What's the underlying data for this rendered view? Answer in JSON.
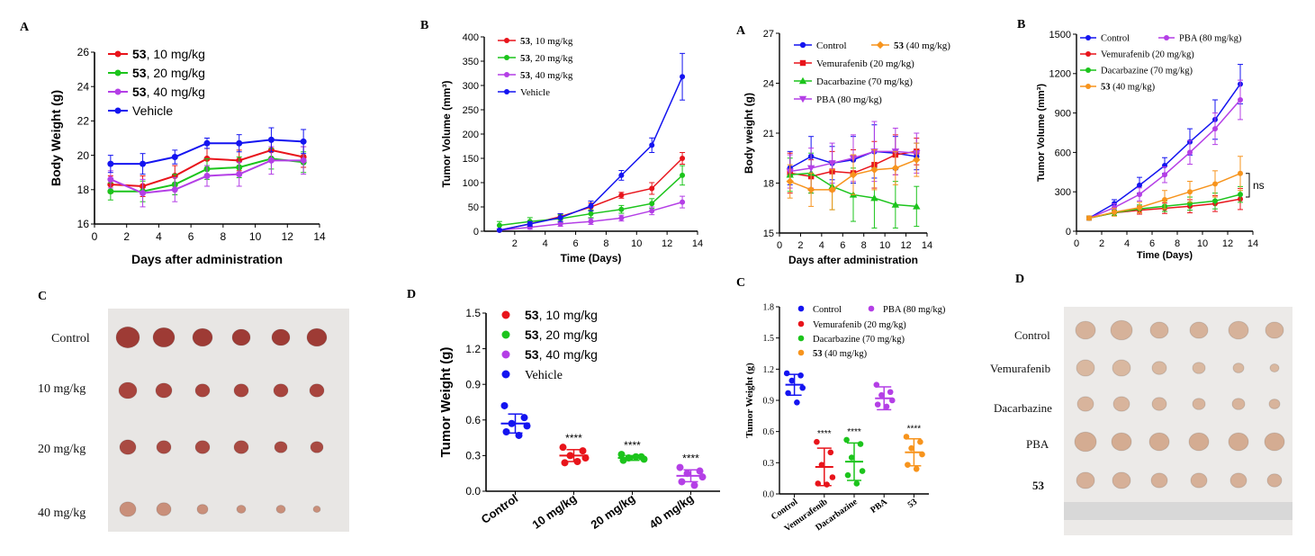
{
  "panel_letters": [
    "A",
    "B",
    "A",
    "B",
    "C",
    "D",
    "C",
    "D"
  ],
  "colors": {
    "red": "#e8141b",
    "green": "#1cc41c",
    "purple": "#b43fe6",
    "blue": "#1414f0",
    "orange": "#f7941d",
    "axis": "#000000",
    "photo_bg": "#e6e6e6",
    "tumor": "#9e3b35",
    "tumor_pale": "#d9b8a0"
  },
  "photo_left": {
    "rows": [
      "Control",
      "10 mg/kg",
      "20 mg/kg",
      "40 mg/kg"
    ]
  },
  "photo_right": {
    "rows": [
      "Control",
      "Vemurafenib",
      "Dacarbazine",
      "PBA",
      "53"
    ]
  },
  "chart_data": [
    {
      "type": "line",
      "panel": "A",
      "xlabel": "Days after administration",
      "ylabel": "Body Weight (g)",
      "xlim": [
        0,
        14
      ],
      "ylim": [
        16,
        26
      ],
      "xticks": [
        0,
        2,
        4,
        6,
        8,
        10,
        12,
        14
      ],
      "yticks": [
        16,
        18,
        20,
        22,
        24,
        26
      ],
      "x": [
        1,
        3,
        5,
        7,
        9,
        11,
        13
      ],
      "legend_placement": "top-left",
      "series": [
        {
          "name": "53, 10 mg/kg",
          "color": "#e8141b",
          "values": [
            18.3,
            18.2,
            18.8,
            19.8,
            19.7,
            20.3,
            19.9
          ],
          "err": [
            0.5,
            0.6,
            0.6,
            0.6,
            0.6,
            0.6,
            0.6
          ]
        },
        {
          "name": "53, 20 mg/kg",
          "color": "#1cc41c",
          "values": [
            17.9,
            17.9,
            18.3,
            19.2,
            19.3,
            19.8,
            19.6
          ],
          "err": [
            0.5,
            0.6,
            0.6,
            0.6,
            0.6,
            0.6,
            0.6
          ]
        },
        {
          "name": "53, 40 mg/kg",
          "color": "#b43fe6",
          "values": [
            18.6,
            17.8,
            18.0,
            18.8,
            18.9,
            19.7,
            19.7
          ],
          "err": [
            0.5,
            0.8,
            0.7,
            0.6,
            0.7,
            0.8,
            0.8
          ]
        },
        {
          "name": "Vehicle",
          "color": "#1414f0",
          "values": [
            19.5,
            19.5,
            19.9,
            20.7,
            20.7,
            20.9,
            20.8
          ],
          "err": [
            0.5,
            0.6,
            0.4,
            0.3,
            0.5,
            0.7,
            0.7
          ]
        }
      ]
    },
    {
      "type": "line",
      "panel": "B",
      "xlabel": "Time (Days)",
      "ylabel": "Tumor Volume (mm³)",
      "xlim": [
        0,
        14
      ],
      "ylim": [
        0,
        400
      ],
      "xticks": [
        2,
        4,
        6,
        8,
        10,
        12,
        14
      ],
      "yticks": [
        0,
        50,
        100,
        150,
        200,
        250,
        300,
        350,
        400
      ],
      "x": [
        1,
        3,
        5,
        7,
        9,
        11,
        13
      ],
      "legend_placement": "top-left",
      "series": [
        {
          "name": "53, 10 mg/kg",
          "color": "#e8141b",
          "values": [
            2,
            15,
            30,
            50,
            74,
            88,
            150
          ],
          "err": [
            2,
            5,
            6,
            8,
            6,
            12,
            12
          ]
        },
        {
          "name": "53, 20 mg/kg",
          "color": "#1cc41c",
          "values": [
            12,
            20,
            26,
            36,
            45,
            57,
            115
          ],
          "err": [
            8,
            8,
            8,
            8,
            8,
            10,
            20
          ]
        },
        {
          "name": "53, 40 mg/kg",
          "color": "#b43fe6",
          "values": [
            2,
            8,
            15,
            20,
            27,
            42,
            60
          ],
          "err": [
            2,
            4,
            5,
            6,
            6,
            8,
            12
          ]
        },
        {
          "name": "Vehicle",
          "color": "#1414f0",
          "values": [
            2,
            15,
            28,
            52,
            115,
            177,
            318
          ],
          "err": [
            2,
            5,
            8,
            10,
            10,
            15,
            48
          ]
        }
      ]
    },
    {
      "type": "line",
      "panel": "A",
      "xlabel": "Days after administration",
      "ylabel": "Body weight (g)",
      "xlim": [
        0,
        14
      ],
      "ylim": [
        15,
        27
      ],
      "xticks": [
        0,
        2,
        4,
        6,
        8,
        10,
        12,
        14
      ],
      "yticks": [
        15,
        18,
        21,
        24,
        27
      ],
      "x": [
        1,
        3,
        5,
        7,
        9,
        11,
        13
      ],
      "legend_placement": "top",
      "series": [
        {
          "name": "Control",
          "color": "#1414f0",
          "marker": "circle",
          "values": [
            18.9,
            19.6,
            19.2,
            19.4,
            19.9,
            19.8,
            19.6
          ],
          "err": [
            1.0,
            1.2,
            1.0,
            1.4,
            1.6,
            1.0,
            0.8
          ]
        },
        {
          "name": "Vemurafenib (20 mg/kg)",
          "color": "#e8141b",
          "marker": "square",
          "values": [
            18.6,
            18.4,
            18.7,
            18.6,
            19.1,
            19.7,
            19.9
          ],
          "err": [
            1.2,
            1.0,
            1.2,
            1.4,
            1.4,
            1.2,
            0.8
          ]
        },
        {
          "name": "Dacarbazine (70 mg/kg)",
          "color": "#1cc41c",
          "marker": "triangle",
          "values": [
            18.5,
            18.6,
            17.8,
            17.3,
            17.1,
            16.7,
            16.6
          ],
          "err": [
            1.0,
            1.2,
            1.4,
            1.6,
            1.8,
            1.4,
            1.2
          ]
        },
        {
          "name": "PBA (80 mg/kg)",
          "color": "#b43fe6",
          "marker": "triangle-down",
          "values": [
            18.7,
            18.9,
            19.2,
            19.5,
            19.9,
            19.9,
            19.8
          ],
          "err": [
            1.0,
            1.2,
            1.2,
            1.4,
            1.8,
            1.4,
            1.2
          ]
        },
        {
          "name": "53 (40 mg/kg)",
          "color": "#f7941d",
          "marker": "diamond",
          "values": [
            18.1,
            17.6,
            17.6,
            18.5,
            18.8,
            18.9,
            19.4
          ],
          "err": [
            1.0,
            1.0,
            1.2,
            1.2,
            1.2,
            1.0,
            1.0
          ]
        }
      ]
    },
    {
      "type": "line",
      "panel": "B",
      "xlabel": "Time (Days)",
      "ylabel": "Tumor Volume (mm³)",
      "xlim": [
        0,
        14
      ],
      "ylim": [
        0,
        1500
      ],
      "xticks": [
        0,
        2,
        4,
        6,
        8,
        10,
        12,
        14
      ],
      "yticks": [
        0,
        300,
        600,
        900,
        1200,
        1500
      ],
      "x": [
        1,
        3,
        5,
        7,
        9,
        11,
        13
      ],
      "legend_placement": "top-left",
      "annotation": "ns",
      "series": [
        {
          "name": "Control",
          "color": "#1414f0",
          "values": [
            100,
            210,
            350,
            500,
            680,
            850,
            1120
          ],
          "err": [
            15,
            30,
            60,
            60,
            100,
            150,
            150
          ]
        },
        {
          "name": "PBA (80 mg/kg)",
          "color": "#b43fe6",
          "values": [
            100,
            180,
            280,
            430,
            600,
            780,
            1000
          ],
          "err": [
            15,
            30,
            50,
            60,
            90,
            120,
            150
          ]
        },
        {
          "name": "Vemurafenib (20 mg/kg)",
          "color": "#e8141b",
          "values": [
            100,
            140,
            160,
            175,
            190,
            210,
            245
          ],
          "err": [
            15,
            20,
            30,
            40,
            50,
            60,
            80
          ]
        },
        {
          "name": "Dacarbazine (70 mg/kg)",
          "color": "#1cc41c",
          "values": [
            100,
            140,
            170,
            190,
            210,
            230,
            280
          ],
          "err": [
            15,
            20,
            30,
            40,
            50,
            60,
            60
          ]
        },
        {
          "name": "53 (40 mg/kg)",
          "color": "#f7941d",
          "values": [
            100,
            145,
            180,
            240,
            300,
            360,
            440
          ],
          "err": [
            15,
            30,
            40,
            70,
            80,
            100,
            130
          ]
        }
      ]
    },
    {
      "type": "scatter",
      "panel": "D",
      "ylabel": "Tumor Weight (g)",
      "ylim": [
        0,
        1.5
      ],
      "yticks": [
        0.0,
        0.3,
        0.6,
        0.9,
        1.2,
        1.5
      ],
      "categories": [
        "Control",
        "10 mg/kg",
        "20 mg/kg",
        "40 mg/kg"
      ],
      "legend_placement": "top",
      "legend": [
        "53, 10 mg/kg",
        "53, 20 mg/kg",
        "53, 40 mg/kg",
        "Vehicle"
      ],
      "legend_colors": [
        "#e8141b",
        "#1cc41c",
        "#b43fe6",
        "#1414f0"
      ],
      "groups": [
        {
          "category": "Control",
          "color": "#1414f0",
          "mean": 0.57,
          "sd": 0.08,
          "points": [
            0.72,
            0.62,
            0.57,
            0.55,
            0.5,
            0.47
          ],
          "sig": ""
        },
        {
          "category": "10 mg/kg",
          "color": "#e8141b",
          "mean": 0.3,
          "sd": 0.05,
          "points": [
            0.37,
            0.34,
            0.3,
            0.28,
            0.24,
            0.25
          ],
          "sig": "****"
        },
        {
          "category": "20 mg/kg",
          "color": "#1cc41c",
          "mean": 0.28,
          "sd": 0.02,
          "points": [
            0.31,
            0.29,
            0.28,
            0.27,
            0.26,
            0.29
          ],
          "sig": "****"
        },
        {
          "category": "40 mg/kg",
          "color": "#b43fe6",
          "mean": 0.13,
          "sd": 0.05,
          "points": [
            0.2,
            0.17,
            0.15,
            0.12,
            0.08,
            0.05
          ],
          "sig": "****"
        }
      ]
    },
    {
      "type": "scatter",
      "panel": "C",
      "ylabel": "Tumor Weight (g)",
      "ylim": [
        0,
        1.8
      ],
      "yticks": [
        0.0,
        0.3,
        0.6,
        0.9,
        1.2,
        1.5,
        1.8
      ],
      "categories": [
        "Control",
        "Vemurafenib",
        "Dacarbazine",
        "PBA",
        "53"
      ],
      "legend_placement": "top",
      "legend": [
        "Control",
        "PBA (80 mg/kg)",
        "Vemurafenib (20 mg/kg)",
        "Dacarbazine (70 mg/kg)",
        "53 (40 mg/kg)"
      ],
      "legend_colors": [
        "#1414f0",
        "#b43fe6",
        "#e8141b",
        "#1cc41c",
        "#f7941d"
      ],
      "groups": [
        {
          "category": "Control",
          "color": "#1414f0",
          "mean": 1.05,
          "sd": 0.1,
          "points": [
            1.16,
            1.14,
            1.09,
            1.02,
            0.97,
            0.88
          ],
          "sig": ""
        },
        {
          "category": "Vemurafenib",
          "color": "#e8141b",
          "mean": 0.26,
          "sd": 0.18,
          "points": [
            0.5,
            0.4,
            0.28,
            0.16,
            0.1,
            0.09
          ],
          "sig": "****"
        },
        {
          "category": "Dacarbazine",
          "color": "#1cc41c",
          "mean": 0.31,
          "sd": 0.18,
          "points": [
            0.52,
            0.48,
            0.35,
            0.22,
            0.18,
            0.1
          ],
          "sig": "****"
        },
        {
          "category": "PBA",
          "color": "#b43fe6",
          "mean": 0.92,
          "sd": 0.11,
          "points": [
            1.05,
            0.98,
            0.95,
            0.9,
            0.86,
            0.84
          ],
          "sig": ""
        },
        {
          "category": "53",
          "color": "#f7941d",
          "mean": 0.4,
          "sd": 0.13,
          "points": [
            0.55,
            0.5,
            0.44,
            0.38,
            0.28,
            0.24
          ],
          "sig": "****"
        }
      ]
    }
  ]
}
